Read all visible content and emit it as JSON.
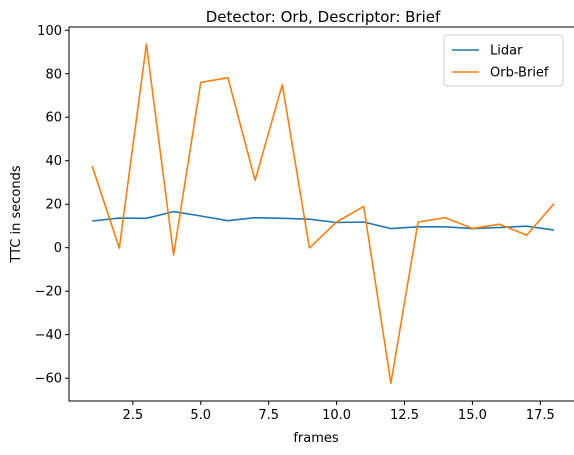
{
  "chart_data": {
    "type": "line",
    "title": "Detector: Orb, Descriptor: Brief",
    "xlabel": "frames",
    "ylabel": "TTC in seconds",
    "xlim": [
      0.15,
      18.85
    ],
    "ylim": [
      -70.5,
      101.5
    ],
    "x_ticks": [
      2.5,
      5.0,
      7.5,
      10.0,
      12.5,
      15.0,
      17.5
    ],
    "x_tick_labels": [
      "2.5",
      "5.0",
      "7.5",
      "10.0",
      "12.5",
      "15.0",
      "17.5"
    ],
    "y_ticks": [
      -60,
      -40,
      -20,
      0,
      20,
      40,
      60,
      80,
      100
    ],
    "y_tick_labels": [
      "−60",
      "−40",
      "−20",
      "0",
      "20",
      "40",
      "60",
      "80",
      "100"
    ],
    "grid": false,
    "legend_position": "top-right",
    "x": [
      1,
      2,
      3,
      4,
      5,
      6,
      7,
      8,
      9,
      10,
      11,
      12,
      13,
      14,
      15,
      16,
      17,
      18
    ],
    "series": [
      {
        "name": "Lidar",
        "color": "#1f77b4",
        "values": [
          12.3,
          13.6,
          13.5,
          16.6,
          14.6,
          12.4,
          13.8,
          13.5,
          13.1,
          11.6,
          11.8,
          8.8,
          9.6,
          9.6,
          8.8,
          9.3,
          9.9,
          8.1
        ]
      },
      {
        "name": "Orb-Brief",
        "color": "#ff7f0e",
        "values": [
          37.6,
          -0.2,
          93.6,
          -3.3,
          76.0,
          78.2,
          31.0,
          75.0,
          -0.1,
          11.8,
          19.0,
          -62.3,
          11.8,
          13.8,
          8.9,
          10.8,
          5.8,
          20.2
        ]
      }
    ]
  }
}
